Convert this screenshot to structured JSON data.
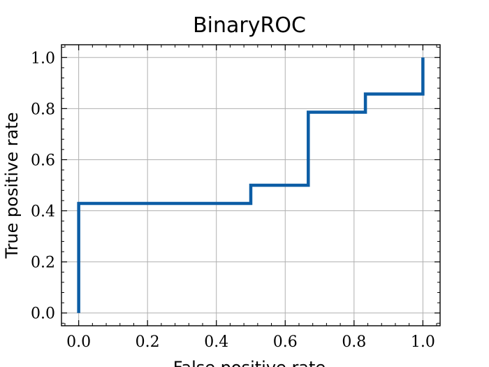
{
  "chart_data": {
    "type": "line",
    "title": "BinaryROC",
    "xlabel": "False positive rate",
    "ylabel": "True positive rate",
    "xlim": [
      -0.05,
      1.05
    ],
    "ylim": [
      -0.05,
      1.05
    ],
    "xticks": [
      0.0,
      0.2,
      0.4,
      0.6,
      0.8,
      1.0
    ],
    "yticks": [
      0.0,
      0.2,
      0.4,
      0.6,
      0.8,
      1.0
    ],
    "xtick_labels": [
      "0.0",
      "0.2",
      "0.4",
      "0.6",
      "0.8",
      "1.0"
    ],
    "ytick_labels": [
      "0.0",
      "0.2",
      "0.4",
      "0.6",
      "0.8",
      "1.0"
    ],
    "grid": true,
    "series": [
      {
        "color": "#0c5da5",
        "drawstyle": "steps",
        "x": [
          0.0,
          0.0,
          0.5,
          0.5,
          0.667,
          0.667,
          0.833,
          0.833,
          1.0,
          1.0
        ],
        "y": [
          0.0,
          0.429,
          0.429,
          0.5,
          0.5,
          0.786,
          0.786,
          0.857,
          0.857,
          1.0
        ]
      }
    ]
  }
}
